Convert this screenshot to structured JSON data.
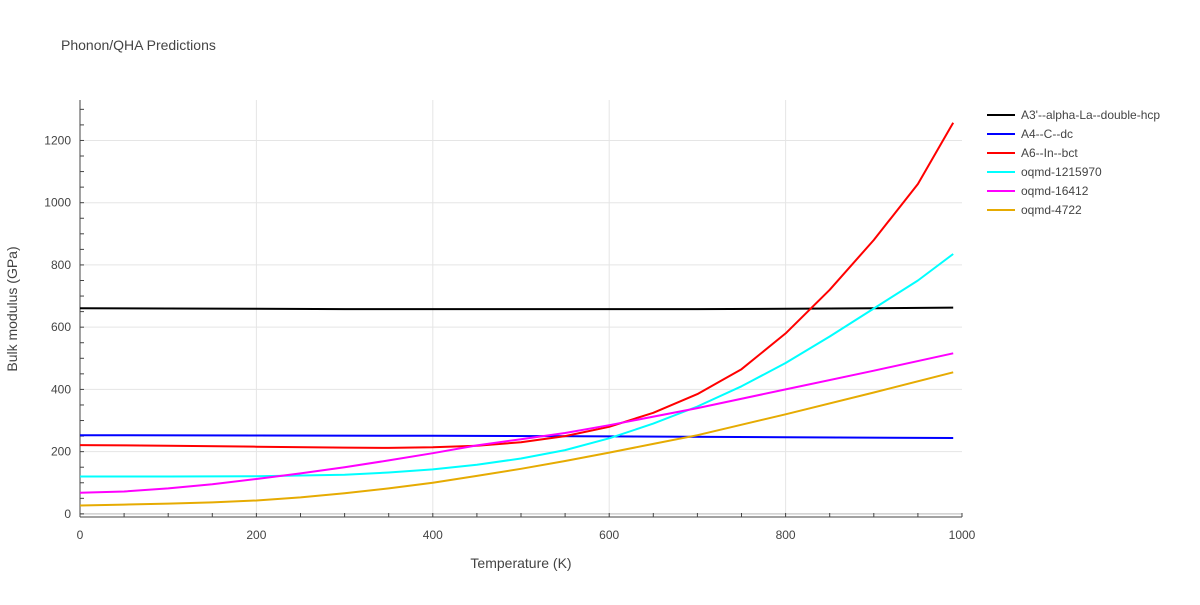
{
  "chart_data": {
    "type": "line",
    "title": "Phonon/QHA Predictions",
    "xlabel": "Temperature (K)",
    "ylabel": "Bulk modulus (GPa)",
    "xlim": [
      0,
      1000
    ],
    "ylim": [
      -10,
      1330
    ],
    "xticks": [
      0,
      200,
      400,
      600,
      800,
      1000
    ],
    "yticks": [
      0,
      200,
      400,
      600,
      800,
      1000,
      1200
    ],
    "grid": true,
    "legend_position": "top-right, outside plot",
    "series": [
      {
        "name": "A3'--alpha-La--double-hcp",
        "color": "#000000",
        "x": [
          0,
          100,
          200,
          300,
          400,
          500,
          600,
          700,
          800,
          900,
          990
        ],
        "y": [
          661,
          660,
          659,
          658,
          658,
          658,
          658,
          658,
          659,
          661,
          663
        ]
      },
      {
        "name": "A4--C--dc",
        "color": "#0000ff",
        "x": [
          0,
          200,
          400,
          600,
          800,
          990
        ],
        "y": [
          253,
          252,
          251,
          249,
          246,
          244
        ]
      },
      {
        "name": "A6--In--bct",
        "color": "#ff0000",
        "x": [
          0,
          100,
          200,
          300,
          350,
          400,
          450,
          500,
          550,
          600,
          650,
          700,
          750,
          800,
          850,
          900,
          950,
          990
        ],
        "y": [
          221,
          219,
          216,
          213,
          212,
          214,
          219,
          230,
          250,
          280,
          325,
          385,
          465,
          580,
          720,
          880,
          1060,
          1257
        ]
      },
      {
        "name": "oqmd-1215970",
        "color": "#00ffff",
        "x": [
          0,
          100,
          200,
          300,
          350,
          400,
          450,
          500,
          550,
          600,
          650,
          700,
          750,
          800,
          850,
          900,
          950,
          990
        ],
        "y": [
          120,
          120,
          121,
          126,
          133,
          143,
          158,
          178,
          205,
          243,
          290,
          345,
          410,
          485,
          570,
          660,
          750,
          835
        ]
      },
      {
        "name": "oqmd-16412",
        "color": "#ff00ff",
        "x": [
          0,
          50,
          100,
          150,
          200,
          250,
          300,
          350,
          400,
          450,
          500,
          550,
          600,
          700,
          800,
          900,
          990
        ],
        "y": [
          68,
          72,
          82,
          95,
          112,
          130,
          150,
          172,
          195,
          220,
          240,
          260,
          285,
          340,
          400,
          460,
          516
        ]
      },
      {
        "name": "oqmd-4722",
        "color": "#e6ab02",
        "x": [
          0,
          50,
          100,
          150,
          200,
          250,
          300,
          350,
          400,
          450,
          500,
          550,
          600,
          650,
          700,
          800,
          900,
          990
        ],
        "y": [
          27,
          30,
          33,
          37,
          43,
          53,
          66,
          82,
          100,
          122,
          145,
          170,
          197,
          225,
          253,
          320,
          390,
          455
        ]
      }
    ]
  }
}
